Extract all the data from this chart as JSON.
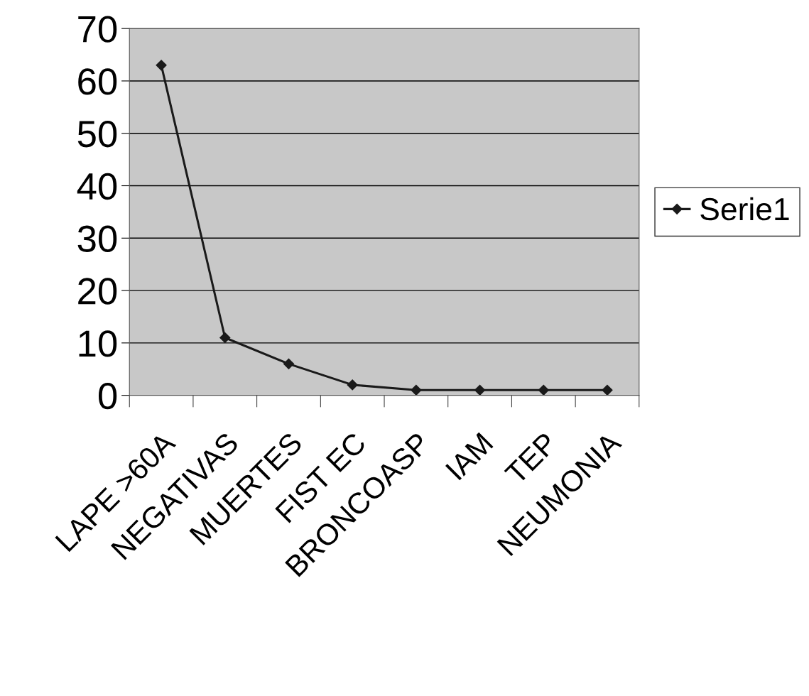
{
  "chart_data": {
    "type": "line",
    "categories": [
      "LAPE >60A",
      "NEGATIVAS",
      "MUERTES",
      "FIST EC",
      "BRONCOASP",
      "IAM",
      "TEP",
      "NEUMONIA"
    ],
    "series": [
      {
        "name": "Serie1",
        "color": "#1a1a1a",
        "values": [
          63,
          11,
          6,
          2,
          1,
          1,
          1,
          1
        ]
      }
    ],
    "ylim": [
      0,
      70
    ],
    "yticks": [
      0,
      10,
      20,
      30,
      40,
      50,
      60,
      70
    ],
    "grid": "y",
    "legend": "right",
    "marker": "diamond",
    "line_style": "solid"
  }
}
